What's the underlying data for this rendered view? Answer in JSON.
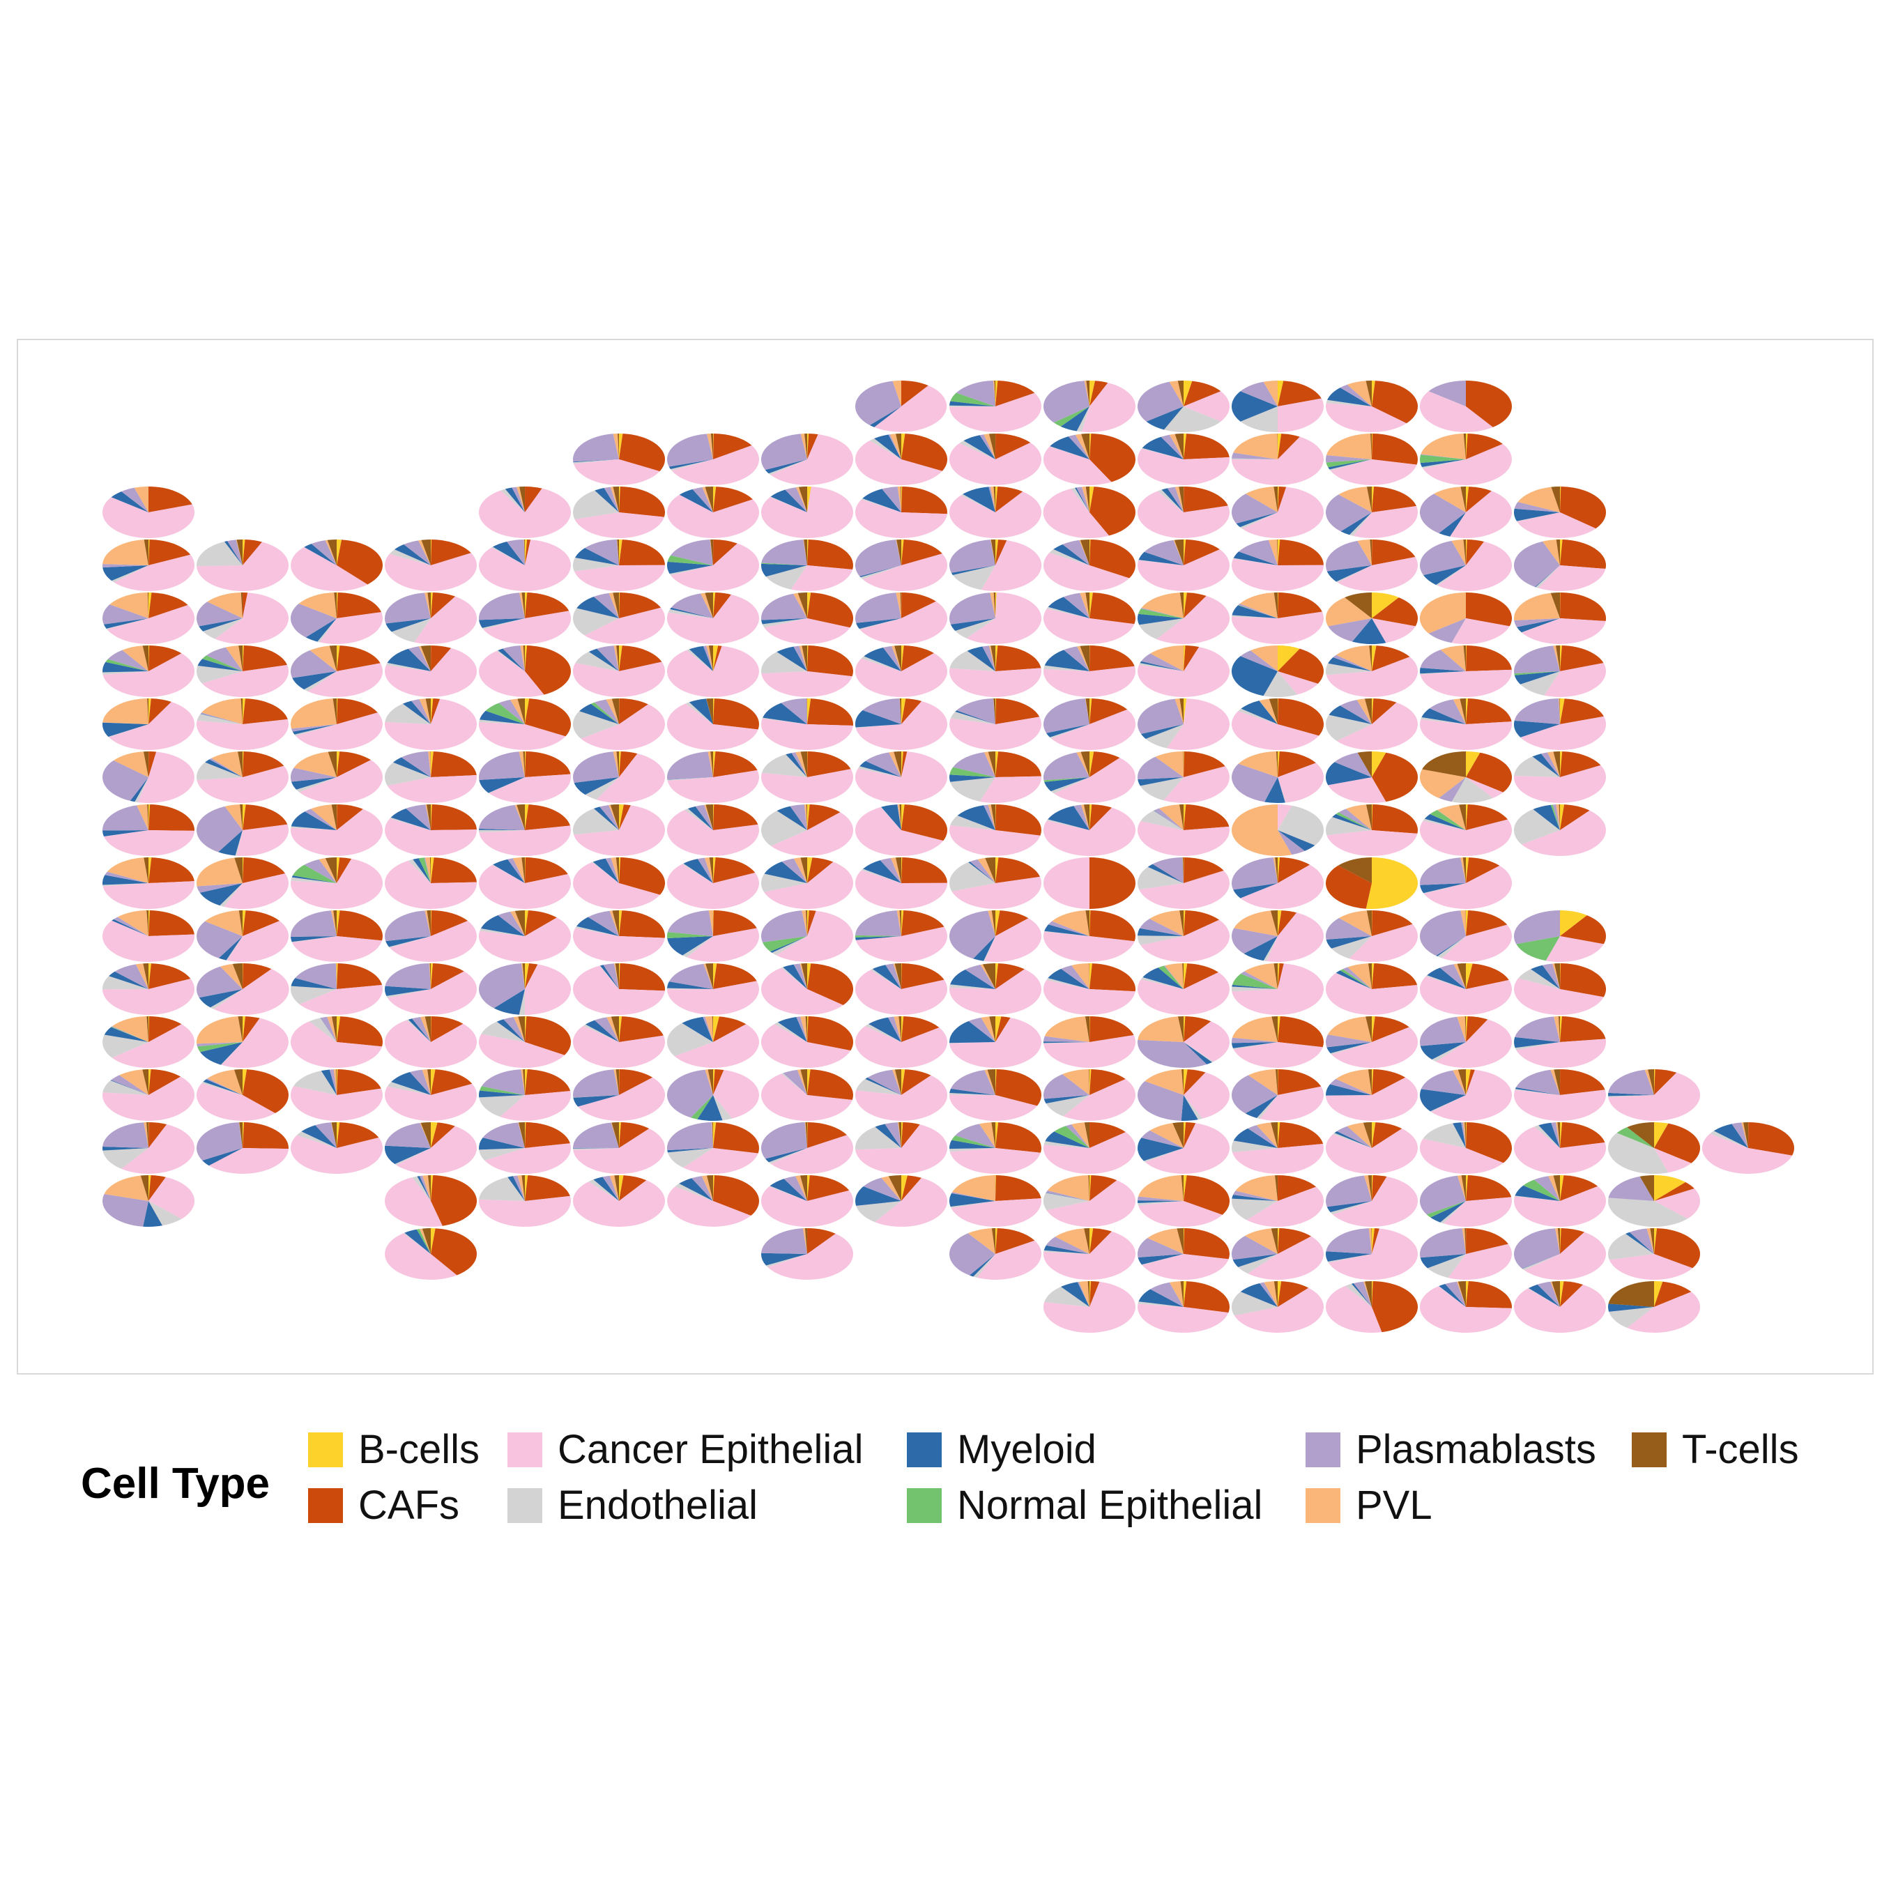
{
  "chart_data": {
    "type": "scatter",
    "subtype": "spatial-pie",
    "title": "",
    "xlabel": "",
    "ylabel": "",
    "legend": {
      "title": "Cell Type",
      "position": "bottom",
      "entries": [
        {
          "name": "B-cells",
          "color": "#FDD22A"
        },
        {
          "name": "CAFs",
          "color": "#CC4A0C"
        },
        {
          "name": "Cancer Epithelial",
          "color": "#F8C3DF"
        },
        {
          "name": "Endothelial",
          "color": "#D3D3D3"
        },
        {
          "name": "Myeloid",
          "color": "#2C6AAA"
        },
        {
          "name": "Normal Epithelial",
          "color": "#73C26E"
        },
        {
          "name": "Plasmablasts",
          "color": "#B1A0CC"
        },
        {
          "name": "PVL",
          "color": "#FAB678"
        },
        {
          "name": "T-cells",
          "color": "#965C19"
        }
      ]
    },
    "grid": false,
    "categories": [
      "B-cells",
      "CAFs",
      "Cancer Epithelial",
      "Endothelial",
      "Myeloid",
      "Normal Epithelial",
      "Plasmablasts",
      "PVL",
      "T-cells"
    ],
    "columns": 18,
    "rows": 18,
    "row_col_ranges": [
      [
        8,
        14
      ],
      [
        5,
        14
      ],
      [
        0,
        0,
        4,
        15
      ],
      [
        0,
        15
      ],
      [
        0,
        15
      ],
      [
        0,
        15
      ],
      [
        0,
        15
      ],
      [
        0,
        15
      ],
      [
        0,
        15
      ],
      [
        0,
        14
      ],
      [
        0,
        15
      ],
      [
        0,
        15
      ],
      [
        0,
        15
      ],
      [
        0,
        16
      ],
      [
        0,
        17
      ],
      [
        0,
        0,
        3,
        16
      ],
      [
        3,
        3,
        7,
        7,
        9,
        16
      ],
      [
        10,
        16
      ]
    ],
    "spots": [
      {
        "row": 0,
        "col": 8,
        "values": [
          0,
          0.1,
          0.5,
          0,
          0.02,
          0,
          0.35,
          0.03,
          0
        ]
      },
      {
        "row": 0,
        "col": 11,
        "values": [
          0.03,
          0.12,
          0.2,
          0.22,
          0.08,
          0,
          0.3,
          0.03,
          0.02
        ]
      },
      {
        "row": 0,
        "col": 12,
        "values": [
          0.02,
          0.18,
          0.3,
          0.15,
          0.2,
          0,
          0.1,
          0.05,
          0
        ]
      },
      {
        "row": 0,
        "col": 14,
        "values": [
          0,
          0.4,
          0.45,
          0,
          0,
          0,
          0.15,
          0,
          0
        ]
      },
      {
        "row": 2,
        "col": 0,
        "values": [
          0,
          0.2,
          0.65,
          0,
          0.05,
          0,
          0.05,
          0.05,
          0
        ]
      },
      {
        "row": 4,
        "col": 13,
        "values": [
          0.1,
          0.2,
          0.15,
          0,
          0.12,
          0,
          0.13,
          0.2,
          0.1
        ]
      },
      {
        "row": 4,
        "col": 14,
        "values": [
          0,
          0.3,
          0.25,
          0,
          0,
          0,
          0.1,
          0.35,
          0
        ]
      },
      {
        "row": 5,
        "col": 12,
        "values": [
          0.08,
          0.25,
          0.1,
          0.12,
          0.3,
          0,
          0.05,
          0.1,
          0
        ]
      },
      {
        "row": 7,
        "col": 13,
        "values": [
          0.05,
          0.4,
          0.25,
          0,
          0.15,
          0,
          0.1,
          0,
          0.05
        ]
      },
      {
        "row": 7,
        "col": 14,
        "values": [
          0.05,
          0.3,
          0.05,
          0.15,
          0,
          0,
          0.05,
          0.2,
          0.2
        ]
      },
      {
        "row": 8,
        "col": 12,
        "values": [
          0,
          0,
          0.05,
          0.3,
          0.05,
          0,
          0.05,
          0.55,
          0
        ]
      },
      {
        "row": 9,
        "col": 13,
        "values": [
          0.52,
          0.35,
          0,
          0,
          0,
          0,
          0,
          0,
          0.13
        ]
      },
      {
        "row": 9,
        "col": 10,
        "values": [
          0,
          0.5,
          0.5,
          0,
          0,
          0,
          0,
          0,
          0
        ]
      },
      {
        "row": 10,
        "col": 15,
        "values": [
          0.1,
          0.2,
          0.25,
          0,
          0,
          0.15,
          0.3,
          0,
          0
        ]
      },
      {
        "row": 14,
        "col": 16,
        "values": [
          0.05,
          0.3,
          0.1,
          0.4,
          0,
          0.05,
          0,
          0,
          0.1
        ]
      },
      {
        "row": 15,
        "col": 16,
        "values": [
          0.12,
          0.05,
          0.2,
          0.4,
          0,
          0,
          0.18,
          0,
          0.05
        ]
      },
      {
        "row": 17,
        "col": 16,
        "values": [
          0.03,
          0.12,
          0.45,
          0.12,
          0.05,
          0,
          0,
          0,
          0.23
        ]
      }
    ]
  }
}
